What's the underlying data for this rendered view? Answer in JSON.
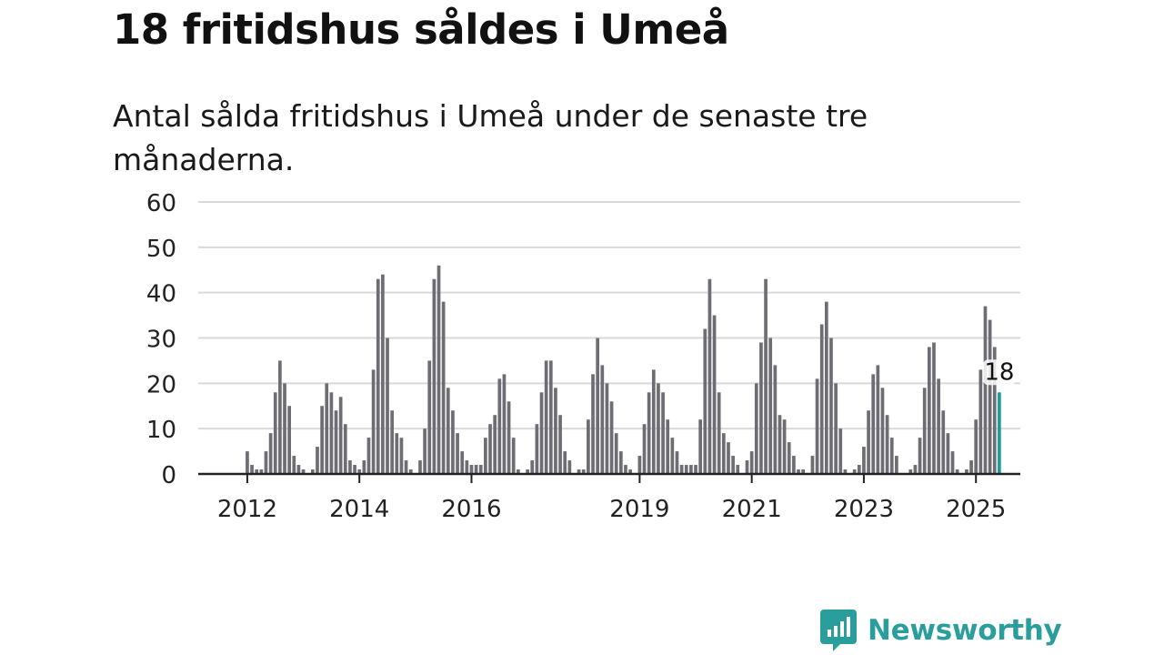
{
  "title": "18 fritidshus såldes i Umeå",
  "subtitle": "Antal sålda fritidshus i Umeå under de senaste tre månaderna.",
  "brand": {
    "name": "Newsworthy",
    "icon": "bar-chart-speech-bubble-icon",
    "color": "#2a9d9d"
  },
  "colors": {
    "bar": "#6e6d73",
    "highlight": "#1a9e9e",
    "grid": "#d9d9d9",
    "axis": "#222222",
    "text": "#222222"
  },
  "chart_data": {
    "type": "bar",
    "title": "18 fritidshus såldes i Umeå",
    "ylabel": "",
    "xlabel": "",
    "ylim": [
      0,
      60
    ],
    "yticks": [
      0,
      10,
      20,
      30,
      40,
      50,
      60
    ],
    "grid": true,
    "x_start": "2011-03",
    "x_end": "2025-10",
    "xtick_labels": [
      {
        "label": "2012",
        "month": "2012-01"
      },
      {
        "label": "2014",
        "month": "2014-01"
      },
      {
        "label": "2016",
        "month": "2016-01"
      },
      {
        "label": "2019",
        "month": "2019-01"
      },
      {
        "label": "2021",
        "month": "2021-01"
      },
      {
        "label": "2023",
        "month": "2023-01"
      },
      {
        "label": "2025",
        "month": "2025-01"
      }
    ],
    "series": [
      {
        "first_month": "2012-01",
        "values": [
          5,
          2,
          1,
          1,
          5,
          9,
          18,
          25,
          20,
          15,
          4,
          2,
          1,
          0,
          1,
          6,
          15,
          20,
          18,
          14,
          17,
          11,
          3,
          2,
          1,
          3,
          8,
          23,
          43,
          44,
          30,
          14,
          9,
          8,
          3,
          1,
          0,
          3,
          10,
          25,
          43,
          46,
          38,
          19,
          14,
          9,
          5,
          3,
          2,
          2,
          2,
          8,
          11,
          13,
          21,
          22,
          16,
          8,
          1,
          0,
          1,
          3,
          11,
          18,
          25,
          25,
          19,
          13,
          5,
          3,
          0,
          1,
          1,
          12,
          22,
          30,
          24,
          20,
          16,
          9,
          5,
          2,
          1,
          0,
          4,
          11,
          18,
          23,
          20,
          18,
          12,
          8,
          5,
          2,
          2,
          2,
          2,
          12,
          32,
          43,
          35,
          18,
          9,
          7,
          4,
          2,
          0,
          3,
          5,
          20,
          29,
          43,
          30,
          24,
          13,
          12,
          7,
          4,
          1,
          1,
          0,
          4,
          21,
          33,
          38,
          30,
          20,
          10,
          1,
          0,
          1,
          2,
          6,
          14,
          22,
          24,
          19,
          13,
          8,
          4,
          0,
          0,
          1,
          2,
          8,
          19,
          28,
          29,
          21,
          14,
          9,
          5,
          1,
          0,
          1,
          3,
          12,
          23,
          37,
          34,
          28,
          18
        ]
      }
    ],
    "annotations": [
      {
        "label": "18",
        "target": "last"
      }
    ]
  }
}
